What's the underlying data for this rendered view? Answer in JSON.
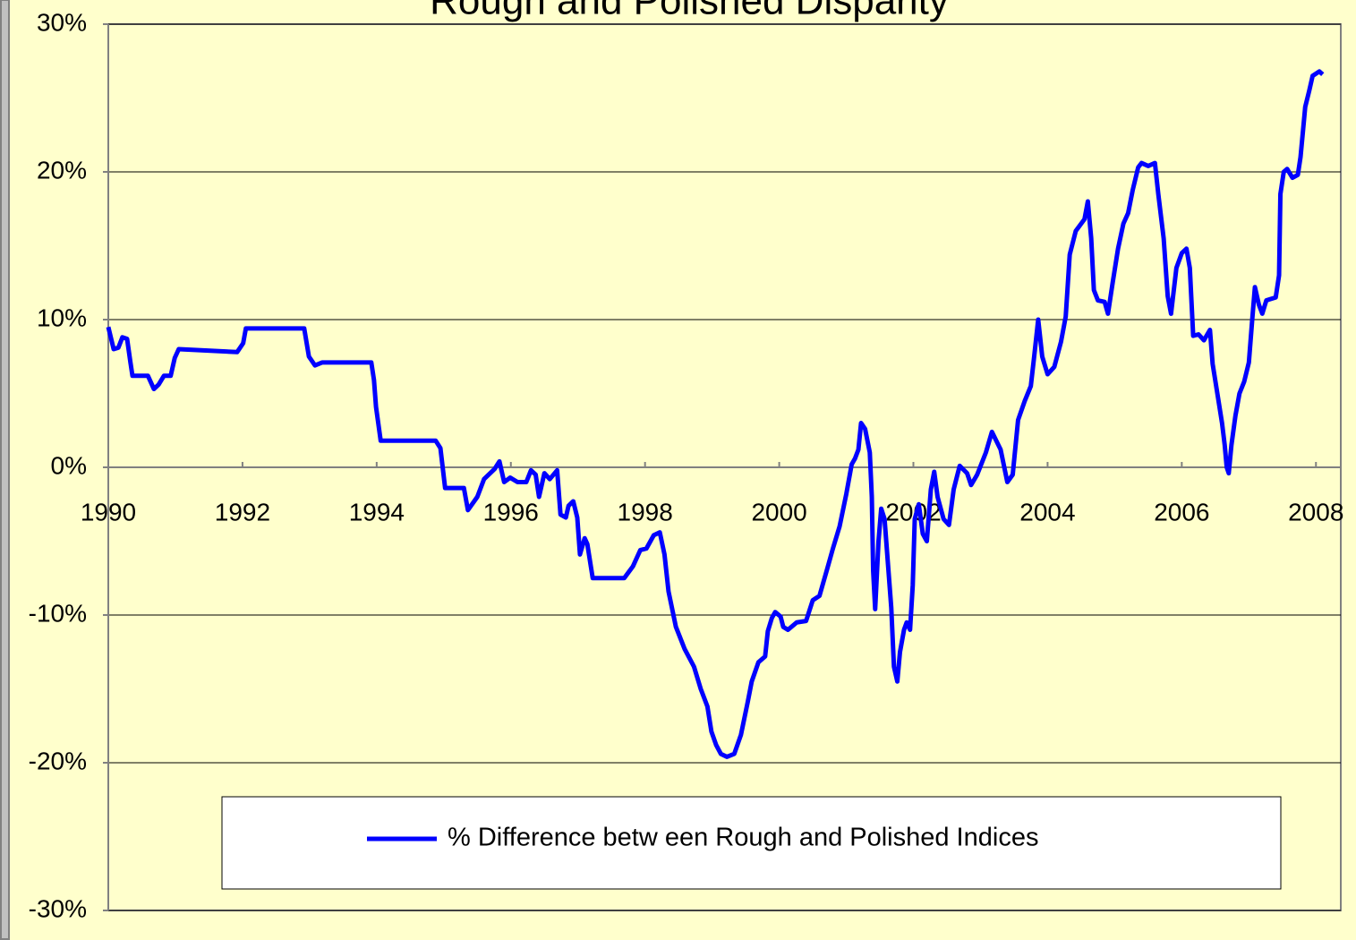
{
  "chart_data": {
    "type": "line",
    "title": "Rough and Polished Disparity",
    "x": [
      1990.0,
      1990.08,
      1990.15,
      1990.21,
      1990.28,
      1990.33,
      1990.36,
      1990.59,
      1990.68,
      1990.75,
      1990.83,
      1990.93,
      1990.99,
      1991.05,
      1991.92,
      1992.01,
      1992.05,
      1992.92,
      1992.99,
      1993.08,
      1993.19,
      1993.92,
      1993.96,
      1993.99,
      1994.06,
      1994.79,
      1994.88,
      1994.95,
      1995.02,
      1995.3,
      1995.36,
      1995.5,
      1995.6,
      1995.76,
      1995.83,
      1995.9,
      1995.99,
      1996.1,
      1996.23,
      1996.3,
      1996.37,
      1996.42,
      1996.5,
      1996.58,
      1996.69,
      1996.74,
      1996.82,
      1996.86,
      1996.93,
      1996.99,
      1997.03,
      1997.1,
      1997.14,
      1997.22,
      1997.69,
      1997.82,
      1997.93,
      1998.02,
      1998.13,
      1998.22,
      1998.29,
      1998.35,
      1998.46,
      1998.59,
      1998.73,
      1998.83,
      1998.93,
      1998.99,
      1999.06,
      1999.13,
      1999.22,
      1999.33,
      1999.43,
      1999.53,
      1999.59,
      1999.69,
      1999.79,
      1999.83,
      1999.89,
      1999.94,
      2000.02,
      2000.06,
      2000.13,
      2000.26,
      2000.4,
      2000.5,
      2000.6,
      2000.72,
      2000.8,
      2000.9,
      2001.0,
      2001.08,
      2001.13,
      2001.18,
      2001.22,
      2001.28,
      2001.35,
      2001.38,
      2001.4,
      2001.43,
      2001.48,
      2001.52,
      2001.57,
      2001.62,
      2001.67,
      2001.71,
      2001.76,
      2001.8,
      2001.86,
      2001.9,
      2001.95,
      2001.99,
      2002.02,
      2002.08,
      2002.14,
      2002.2,
      2002.26,
      2002.31,
      2002.36,
      2002.45,
      2002.53,
      2002.6,
      2002.69,
      2002.8,
      2002.86,
      2002.95,
      2003.08,
      2003.17,
      2003.3,
      2003.4,
      2003.48,
      2003.56,
      2003.66,
      2003.75,
      2003.8,
      2003.86,
      2003.92,
      2004.0,
      2004.1,
      2004.2,
      2004.27,
      2004.33,
      2004.42,
      2004.55,
      2004.6,
      2004.65,
      2004.69,
      2004.75,
      2004.85,
      2004.9,
      2004.97,
      2005.05,
      2005.13,
      2005.2,
      2005.27,
      2005.35,
      2005.4,
      2005.5,
      2005.6,
      2005.65,
      2005.73,
      2005.79,
      2005.84,
      2005.92,
      2006.0,
      2006.07,
      2006.12,
      2006.17,
      2006.25,
      2006.33,
      2006.42,
      2006.46,
      2006.53,
      2006.6,
      2006.64,
      2006.67,
      2006.7,
      2006.74,
      2006.8,
      2006.86,
      2006.93,
      2007.0,
      2007.05,
      2007.09,
      2007.15,
      2007.2,
      2007.26,
      2007.4,
      2007.45,
      2007.47,
      2007.52,
      2007.57,
      2007.65,
      2007.73,
      2007.77,
      2007.84,
      2007.9,
      2007.95,
      2008.05,
      2008.1
    ],
    "series": [
      {
        "name": "% Difference betw een Rough and Polished Indices",
        "color": "#0000ff",
        "values": [
          9.5,
          8.0,
          8.1,
          8.8,
          8.7,
          7.1,
          6.2,
          6.2,
          5.3,
          5.6,
          6.2,
          6.2,
          7.4,
          8.0,
          7.8,
          8.4,
          9.4,
          9.4,
          7.5,
          6.9,
          7.1,
          7.1,
          5.9,
          4.1,
          1.8,
          1.8,
          1.8,
          1.3,
          -1.4,
          -1.4,
          -2.9,
          -2.0,
          -0.8,
          -0.1,
          0.4,
          -1.0,
          -0.7,
          -1.0,
          -1.0,
          -0.2,
          -0.5,
          -2.0,
          -0.4,
          -0.8,
          -0.2,
          -3.2,
          -3.4,
          -2.6,
          -2.3,
          -3.4,
          -5.9,
          -4.8,
          -5.2,
          -7.5,
          -7.5,
          -6.7,
          -5.6,
          -5.5,
          -4.6,
          -4.4,
          -5.9,
          -8.4,
          -10.8,
          -12.3,
          -13.5,
          -15.0,
          -16.2,
          -17.9,
          -18.8,
          -19.4,
          -19.6,
          -19.4,
          -18.1,
          -15.9,
          -14.5,
          -13.2,
          -12.8,
          -11.1,
          -10.2,
          -9.8,
          -10.1,
          -10.8,
          -11.0,
          -10.5,
          -10.4,
          -9.0,
          -8.7,
          -6.8,
          -5.5,
          -4.0,
          -1.8,
          0.2,
          0.6,
          1.2,
          3.0,
          2.6,
          1.0,
          -2.0,
          -7.0,
          -9.6,
          -5.0,
          -2.8,
          -3.5,
          -6.5,
          -9.5,
          -13.5,
          -14.5,
          -12.5,
          -11.0,
          -10.5,
          -11.0,
          -8.0,
          -3.5,
          -2.5,
          -4.5,
          -5.0,
          -1.5,
          -0.3,
          -2.0,
          -3.5,
          -3.9,
          -1.5,
          0.1,
          -0.4,
          -1.2,
          -0.5,
          1.0,
          2.4,
          1.2,
          -1.0,
          -0.5,
          3.2,
          4.5,
          5.5,
          7.5,
          10.0,
          7.5,
          6.3,
          6.8,
          8.5,
          10.2,
          14.4,
          16.0,
          16.8,
          18.0,
          15.5,
          12.0,
          11.3,
          11.2,
          10.4,
          12.5,
          14.8,
          16.5,
          17.2,
          18.8,
          20.3,
          20.6,
          20.4,
          20.6,
          18.5,
          15.5,
          11.6,
          10.4,
          13.5,
          14.5,
          14.8,
          13.5,
          8.9,
          9.0,
          8.6,
          9.3,
          7.0,
          5.0,
          3.0,
          1.5,
          0.0,
          -0.4,
          1.5,
          3.5,
          5.0,
          5.8,
          7.1,
          10.0,
          12.2,
          11.0,
          10.4,
          11.3,
          11.5,
          13.0,
          18.5,
          20.0,
          20.2,
          19.6,
          19.8,
          21.0,
          24.4,
          25.5,
          26.5,
          26.8,
          26.6
        ]
      }
    ],
    "xlim": [
      1990,
      2008.37
    ],
    "xticks": [
      1990,
      1992,
      1994,
      1996,
      1998,
      2000,
      2002,
      2004,
      2006,
      2008
    ],
    "ylim": [
      -30,
      30
    ],
    "yticks": [
      {
        "value": -30,
        "label": "-30%"
      },
      {
        "value": -20,
        "label": "-20%"
      },
      {
        "value": -10,
        "label": "-10%"
      },
      {
        "value": 0,
        "label": "0%"
      },
      {
        "value": 10,
        "label": "10%"
      },
      {
        "value": 20,
        "label": "20%"
      },
      {
        "value": 30,
        "label": "30%"
      }
    ],
    "grid": true,
    "legend": "bottom"
  }
}
